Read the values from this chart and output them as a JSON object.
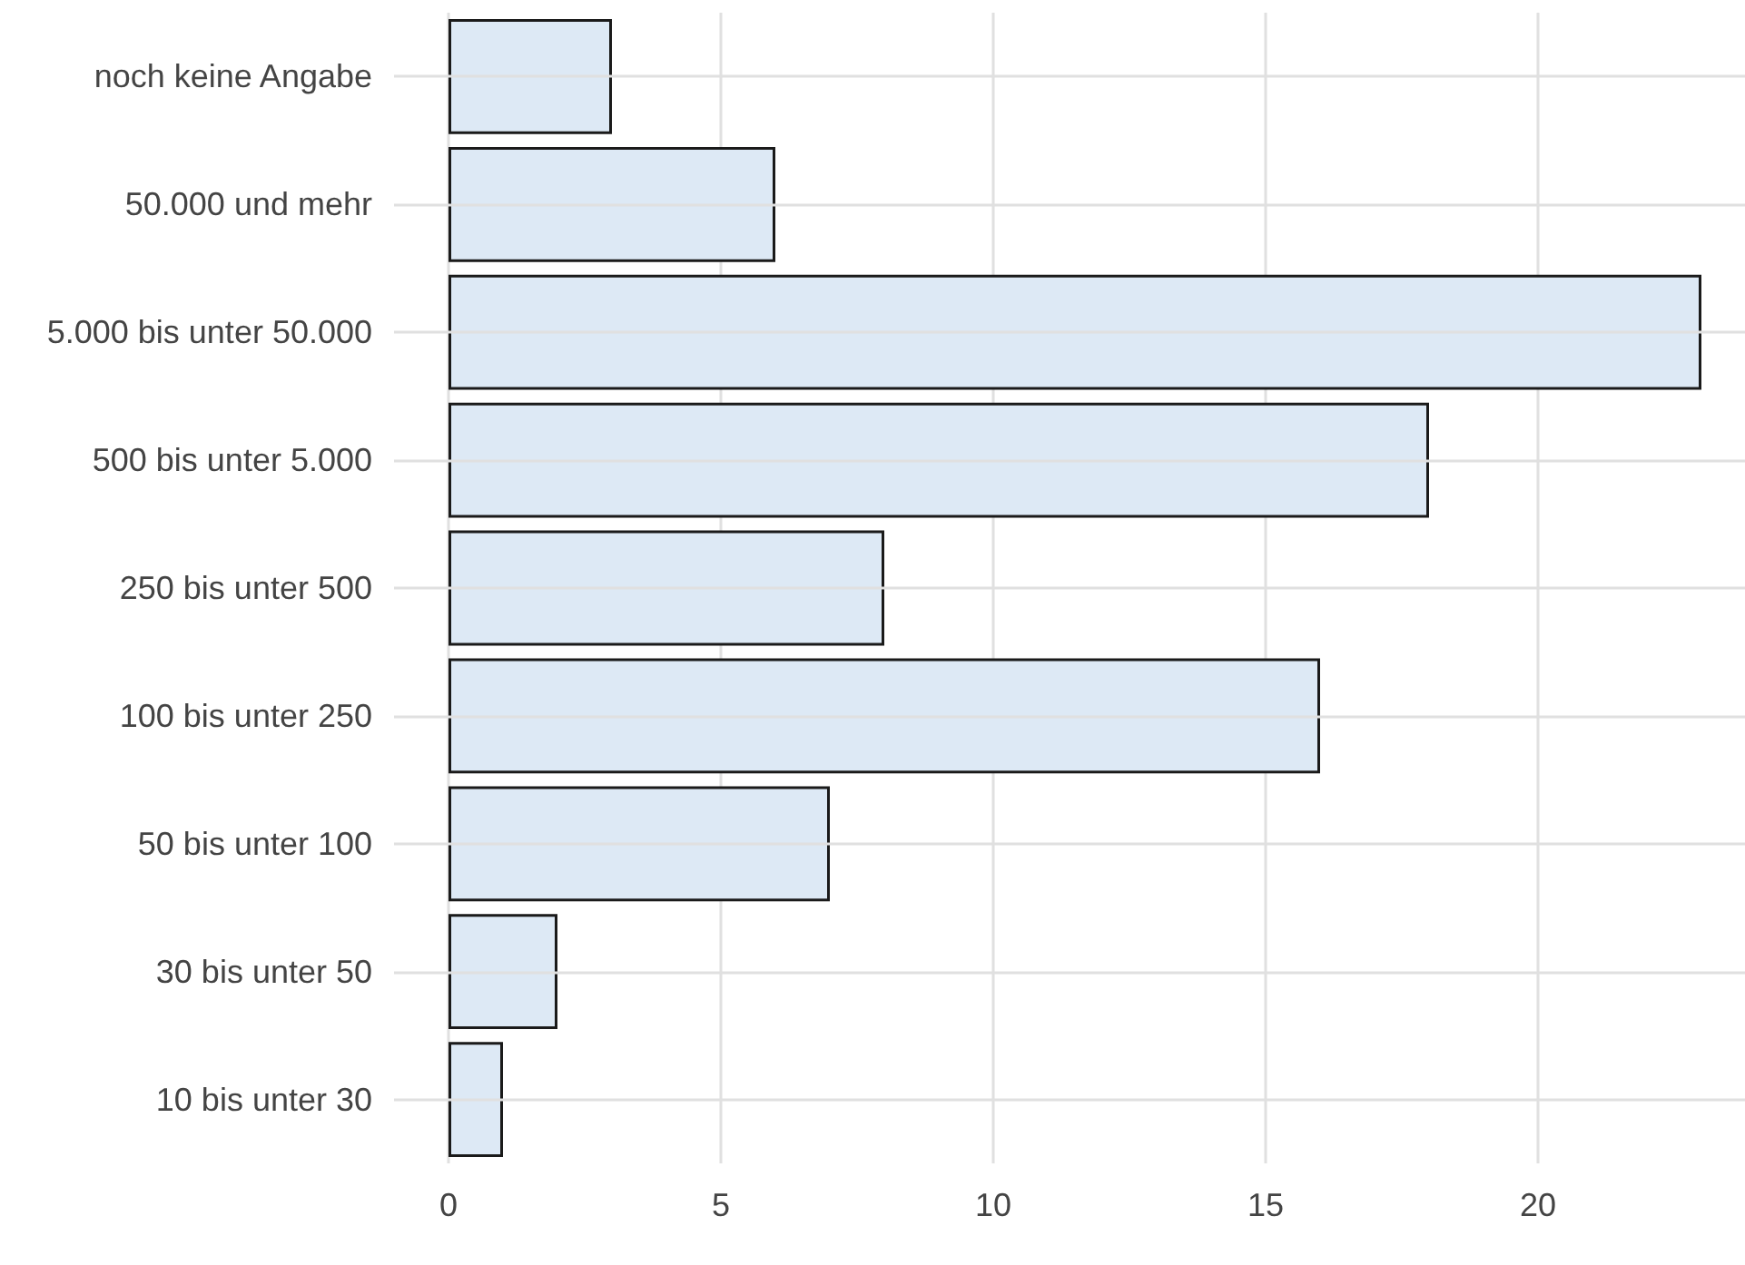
{
  "chart_data": {
    "type": "bar",
    "orientation": "horizontal",
    "categories": [
      "noch keine Angabe",
      "50.000 und mehr",
      "5.000 bis unter 50.000",
      "500 bis unter 5.000",
      "250 bis unter 500",
      "100 bis unter 250",
      "50 bis unter 100",
      "30 bis unter 50",
      "10 bis unter 30"
    ],
    "values": [
      3,
      6,
      23,
      18,
      8,
      16,
      7,
      2,
      1
    ],
    "color": "#dde9f5",
    "xlim": [
      -1,
      23.8
    ],
    "xticks": [
      0,
      5,
      10,
      15,
      20
    ],
    "grid": true
  }
}
